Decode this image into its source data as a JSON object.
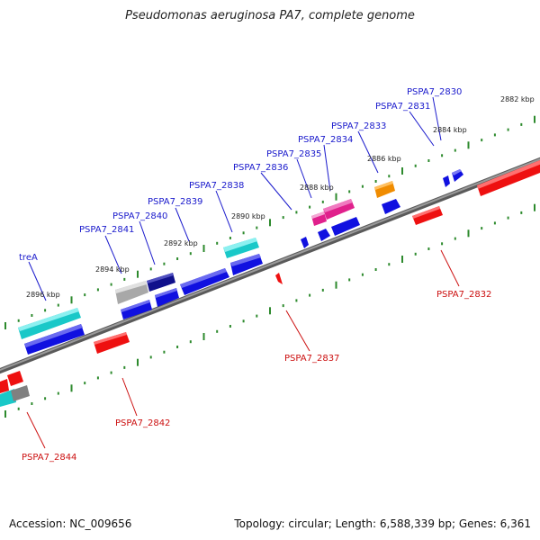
{
  "title": "Pseudomonas aeruginosa PA7, complete genome",
  "footer": {
    "accession": "Accession: NC_009656",
    "topology": "Topology: circular; Length: 6,588,339 bp; Genes: 6,361"
  },
  "colors": {
    "backbone": "#808080",
    "ticks": "#2d8a2d",
    "forward_label": "#1a1acc",
    "reverse_label": "#cc1010",
    "kbp_text": "#222222",
    "gene_blue": "#1010e0",
    "gene_red": "#ee1010",
    "gene_cyan": "#19c8c8",
    "gene_magenta": "#e0208c",
    "gene_orange": "#f08c00",
    "gene_navy": "#10108c",
    "gene_silver": "#c0c0c0",
    "gene_gray": "#808080"
  },
  "kbp_labels": [
    "2882 kbp",
    "2884 kbp",
    "2886 kbp",
    "2888 kbp",
    "2890 kbp",
    "2892 kbp",
    "2894 kbp",
    "2896 kbp"
  ],
  "forward_genes": [
    "PSPA7_2830",
    "PSPA7_2831",
    "PSPA7_2833",
    "PSPA7_2834",
    "PSPA7_2835",
    "PSPA7_2836",
    "PSPA7_2838",
    "PSPA7_2839",
    "PSPA7_2840",
    "PSPA7_2841",
    "treA"
  ],
  "reverse_genes": [
    "PSPA7_2832",
    "PSPA7_2837",
    "PSPA7_2842",
    "PSPA7_2844"
  ]
}
